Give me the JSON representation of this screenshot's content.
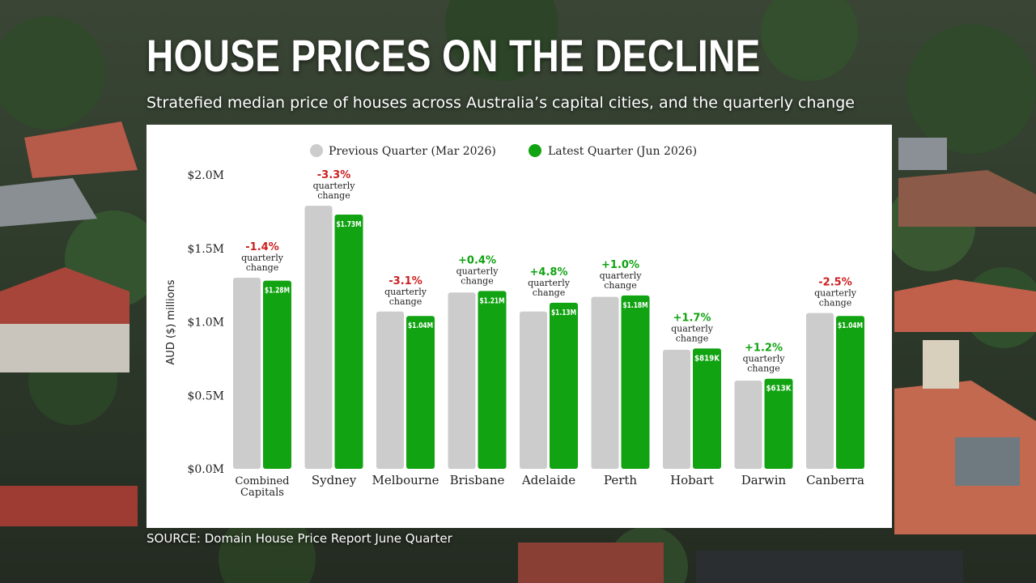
{
  "header": {
    "title": "HOUSE PRICES ON THE DECLINE",
    "subtitle": "Stratefied median price of houses across Australia’s capital cities, and the quarterly change"
  },
  "footer": {
    "source": "SOURCE: Domain House Price Report June Quarter"
  },
  "colors": {
    "previous": "#cccccc",
    "latest": "#11a311",
    "negative": "#cc1f1f",
    "positive": "#11a311",
    "text": "#222222"
  },
  "chart_data": {
    "type": "bar",
    "ylabel": "AUD ($) millions",
    "ylim": [
      0,
      2.0
    ],
    "yticks": [
      0,
      0.5,
      1.0,
      1.5,
      2.0
    ],
    "ytick_labels": [
      "$0.0M",
      "$0.5M",
      "$1.0M",
      "$1.5M",
      "$2.0M"
    ],
    "grid": false,
    "legend_position": "top-center",
    "change_caption": [
      "quarterly",
      "change"
    ],
    "categories": [
      "Combined Capitals",
      "Sydney",
      "Melbourne",
      "Brisbane",
      "Adelaide",
      "Perth",
      "Hobart",
      "Darwin",
      "Canberra"
    ],
    "series": [
      {
        "name": "Previous Quarter (Mar 2026)",
        "values": [
          1.3,
          1.79,
          1.07,
          1.2,
          1.07,
          1.17,
          0.81,
          0.6,
          1.06
        ]
      },
      {
        "name": "Latest Quarter (Jun 2026)",
        "values": [
          1.28,
          1.73,
          1.04,
          1.21,
          1.13,
          1.18,
          0.819,
          0.613,
          1.04
        ],
        "data_labels": [
          "$1.28M",
          "$1.73M",
          "$1.04M",
          "$1.21M",
          "$1.13M",
          "$1.18M",
          "$819K",
          "$613K",
          "$1.04M"
        ]
      }
    ],
    "changes": [
      "-1.4%",
      "-3.3%",
      "-3.1%",
      "+0.4%",
      "+4.8%",
      "+1.0%",
      "+1.7%",
      "+1.2%",
      "-2.5%"
    ]
  }
}
